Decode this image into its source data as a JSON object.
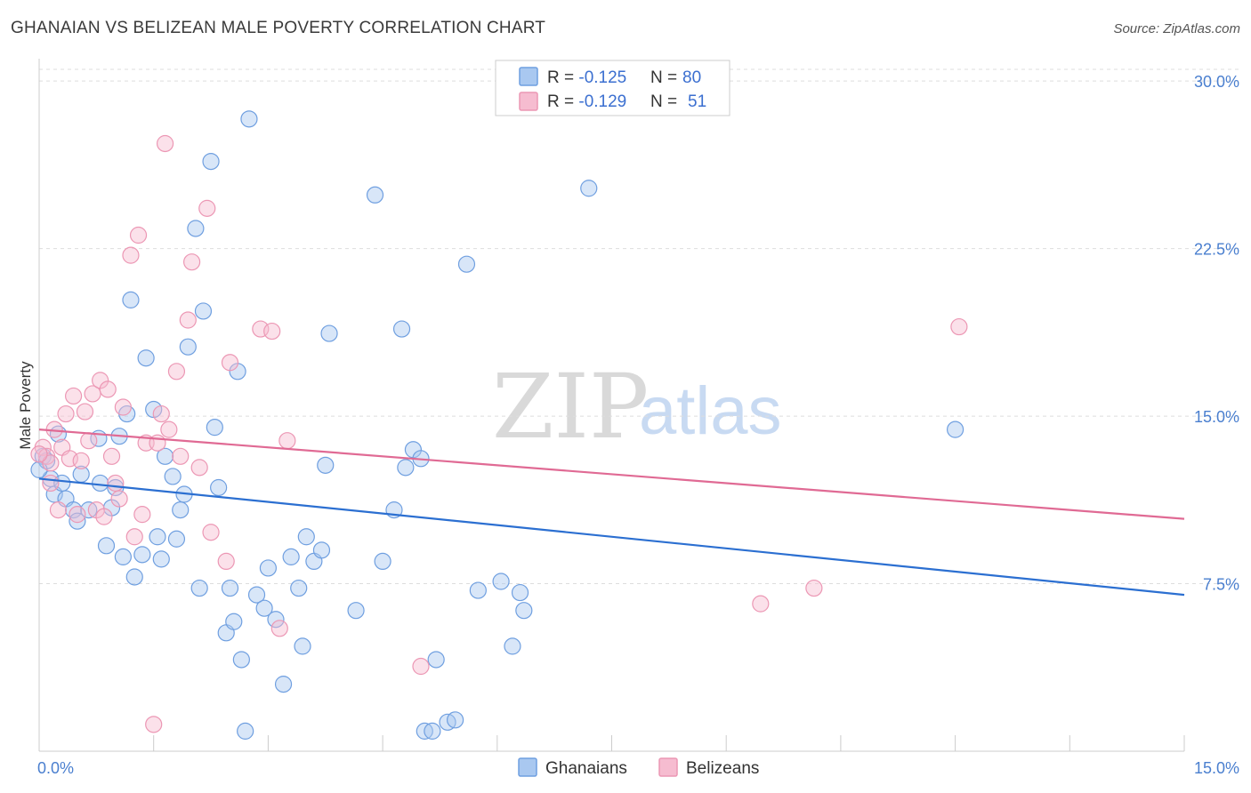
{
  "header": {
    "title": "GHANAIAN VS BELIZEAN MALE POVERTY CORRELATION CHART",
    "source": "Source: ZipAtlas.com"
  },
  "watermark": {
    "zip": "ZIP",
    "atlas": "atlas"
  },
  "legend": {
    "items": [
      {
        "r_label": "R = ",
        "r_value": "-0.125",
        "n_label": "N = ",
        "n_value": "80"
      },
      {
        "r_label": "R = ",
        "r_value": "-0.129",
        "n_label": "N = ",
        "n_value": "51"
      }
    ]
  },
  "bottom_legend": [
    "Ghanaians",
    "Belizeans"
  ],
  "colors": {
    "blue_fill": "#a9c8f0",
    "blue_stroke": "#6f9fe0",
    "blue_line": "#2b6fd1",
    "pink_fill": "#f6bcd0",
    "pink_stroke": "#ec97b4",
    "pink_line": "#e06a94",
    "grid": "#dddddd",
    "tick_text": "#4a7fcf"
  },
  "chart_data": {
    "type": "scatter",
    "title": "GHANAIAN VS BELIZEAN MALE POVERTY CORRELATION CHART",
    "xlabel": "",
    "ylabel": "Male Poverty",
    "xlim": [
      0,
      15
    ],
    "ylim": [
      0,
      31
    ],
    "x_tick_labels": [
      {
        "v": 0,
        "label": "0.0%"
      },
      {
        "v": 15,
        "label": "15.0%"
      }
    ],
    "y_tick_labels": [
      {
        "v": 7.5,
        "label": "7.5%"
      },
      {
        "v": 15,
        "label": "15.0%"
      },
      {
        "v": 22.5,
        "label": "22.5%"
      },
      {
        "v": 30,
        "label": "30.0%"
      }
    ],
    "series": [
      {
        "name": "Ghanaians",
        "r": -0.125,
        "n": 80,
        "trend": [
          [
            0,
            12.2
          ],
          [
            15,
            7.0
          ]
        ],
        "points": [
          [
            0.05,
            13.2
          ],
          [
            0.1,
            13.0
          ],
          [
            0.15,
            12.2
          ],
          [
            0.2,
            11.5
          ],
          [
            0.25,
            14.2
          ],
          [
            0.3,
            12.0
          ],
          [
            0.35,
            11.3
          ],
          [
            0.45,
            10.8
          ],
          [
            0.5,
            10.3
          ],
          [
            0.55,
            12.4
          ],
          [
            0.65,
            10.8
          ],
          [
            0.78,
            14.0
          ],
          [
            0.8,
            12.0
          ],
          [
            0.88,
            9.2
          ],
          [
            0.95,
            10.9
          ],
          [
            1.0,
            11.8
          ],
          [
            1.05,
            14.1
          ],
          [
            1.1,
            8.7
          ],
          [
            1.15,
            15.1
          ],
          [
            1.2,
            20.2
          ],
          [
            1.25,
            7.8
          ],
          [
            1.35,
            8.8
          ],
          [
            1.4,
            17.6
          ],
          [
            1.5,
            15.3
          ],
          [
            1.55,
            9.6
          ],
          [
            1.6,
            8.6
          ],
          [
            1.65,
            13.2
          ],
          [
            1.75,
            12.3
          ],
          [
            1.8,
            9.5
          ],
          [
            1.85,
            10.8
          ],
          [
            1.9,
            11.5
          ],
          [
            1.95,
            18.1
          ],
          [
            2.05,
            23.4
          ],
          [
            2.1,
            7.3
          ],
          [
            2.15,
            19.7
          ],
          [
            2.25,
            26.4
          ],
          [
            2.3,
            14.5
          ],
          [
            2.35,
            11.8
          ],
          [
            2.45,
            5.3
          ],
          [
            2.5,
            7.3
          ],
          [
            2.55,
            5.8
          ],
          [
            2.6,
            17.0
          ],
          [
            2.65,
            4.1
          ],
          [
            2.7,
            0.9
          ],
          [
            2.75,
            28.3
          ],
          [
            2.85,
            7.0
          ],
          [
            2.95,
            6.4
          ],
          [
            3.0,
            8.2
          ],
          [
            3.1,
            5.9
          ],
          [
            3.2,
            3.0
          ],
          [
            3.3,
            8.7
          ],
          [
            3.4,
            7.3
          ],
          [
            3.45,
            4.7
          ],
          [
            3.5,
            9.6
          ],
          [
            3.6,
            8.5
          ],
          [
            3.7,
            9.0
          ],
          [
            3.75,
            12.8
          ],
          [
            3.8,
            18.7
          ],
          [
            4.15,
            6.3
          ],
          [
            4.4,
            24.9
          ],
          [
            4.5,
            8.5
          ],
          [
            4.65,
            10.8
          ],
          [
            4.75,
            18.9
          ],
          [
            4.8,
            12.7
          ],
          [
            4.9,
            13.5
          ],
          [
            5.0,
            13.1
          ],
          [
            5.05,
            0.9
          ],
          [
            5.15,
            0.9
          ],
          [
            5.2,
            4.1
          ],
          [
            5.35,
            1.3
          ],
          [
            5.45,
            1.4
          ],
          [
            5.6,
            21.8
          ],
          [
            5.75,
            7.2
          ],
          [
            6.05,
            7.6
          ],
          [
            6.2,
            4.7
          ],
          [
            6.3,
            7.1
          ],
          [
            6.35,
            6.3
          ],
          [
            7.2,
            25.2
          ],
          [
            12.0,
            14.4
          ],
          [
            0.0,
            12.6
          ]
        ]
      },
      {
        "name": "Belizeans",
        "r": -0.129,
        "n": 51,
        "trend": [
          [
            0,
            14.4
          ],
          [
            15,
            10.4
          ]
        ],
        "points": [
          [
            0.05,
            13.6
          ],
          [
            0.1,
            13.2
          ],
          [
            0.15,
            12.9
          ],
          [
            0.2,
            14.4
          ],
          [
            0.25,
            10.8
          ],
          [
            0.3,
            13.6
          ],
          [
            0.35,
            15.1
          ],
          [
            0.4,
            13.1
          ],
          [
            0.45,
            15.9
          ],
          [
            0.5,
            10.6
          ],
          [
            0.6,
            15.2
          ],
          [
            0.65,
            13.9
          ],
          [
            0.7,
            16.0
          ],
          [
            0.75,
            10.8
          ],
          [
            0.8,
            16.6
          ],
          [
            0.85,
            10.5
          ],
          [
            0.9,
            16.2
          ],
          [
            0.95,
            13.2
          ],
          [
            1.0,
            12.0
          ],
          [
            1.05,
            11.3
          ],
          [
            1.1,
            15.4
          ],
          [
            1.2,
            22.2
          ],
          [
            1.25,
            9.6
          ],
          [
            1.3,
            23.1
          ],
          [
            1.35,
            10.6
          ],
          [
            1.4,
            13.8
          ],
          [
            1.5,
            1.2
          ],
          [
            1.55,
            13.8
          ],
          [
            1.6,
            15.1
          ],
          [
            1.65,
            27.2
          ],
          [
            1.7,
            14.4
          ],
          [
            1.8,
            17.0
          ],
          [
            1.85,
            13.2
          ],
          [
            1.95,
            19.3
          ],
          [
            2.0,
            21.9
          ],
          [
            2.1,
            12.7
          ],
          [
            2.2,
            24.3
          ],
          [
            2.25,
            9.8
          ],
          [
            2.45,
            8.5
          ],
          [
            2.5,
            17.4
          ],
          [
            2.9,
            18.9
          ],
          [
            3.05,
            18.8
          ],
          [
            3.15,
            5.5
          ],
          [
            3.25,
            13.9
          ],
          [
            5.0,
            3.8
          ],
          [
            9.45,
            6.6
          ],
          [
            10.15,
            7.3
          ],
          [
            12.05,
            19.0
          ],
          [
            0.15,
            12.0
          ],
          [
            0.55,
            13.0
          ],
          [
            0.0,
            13.3
          ]
        ]
      }
    ],
    "grid": true,
    "legend_position": "top-center"
  }
}
